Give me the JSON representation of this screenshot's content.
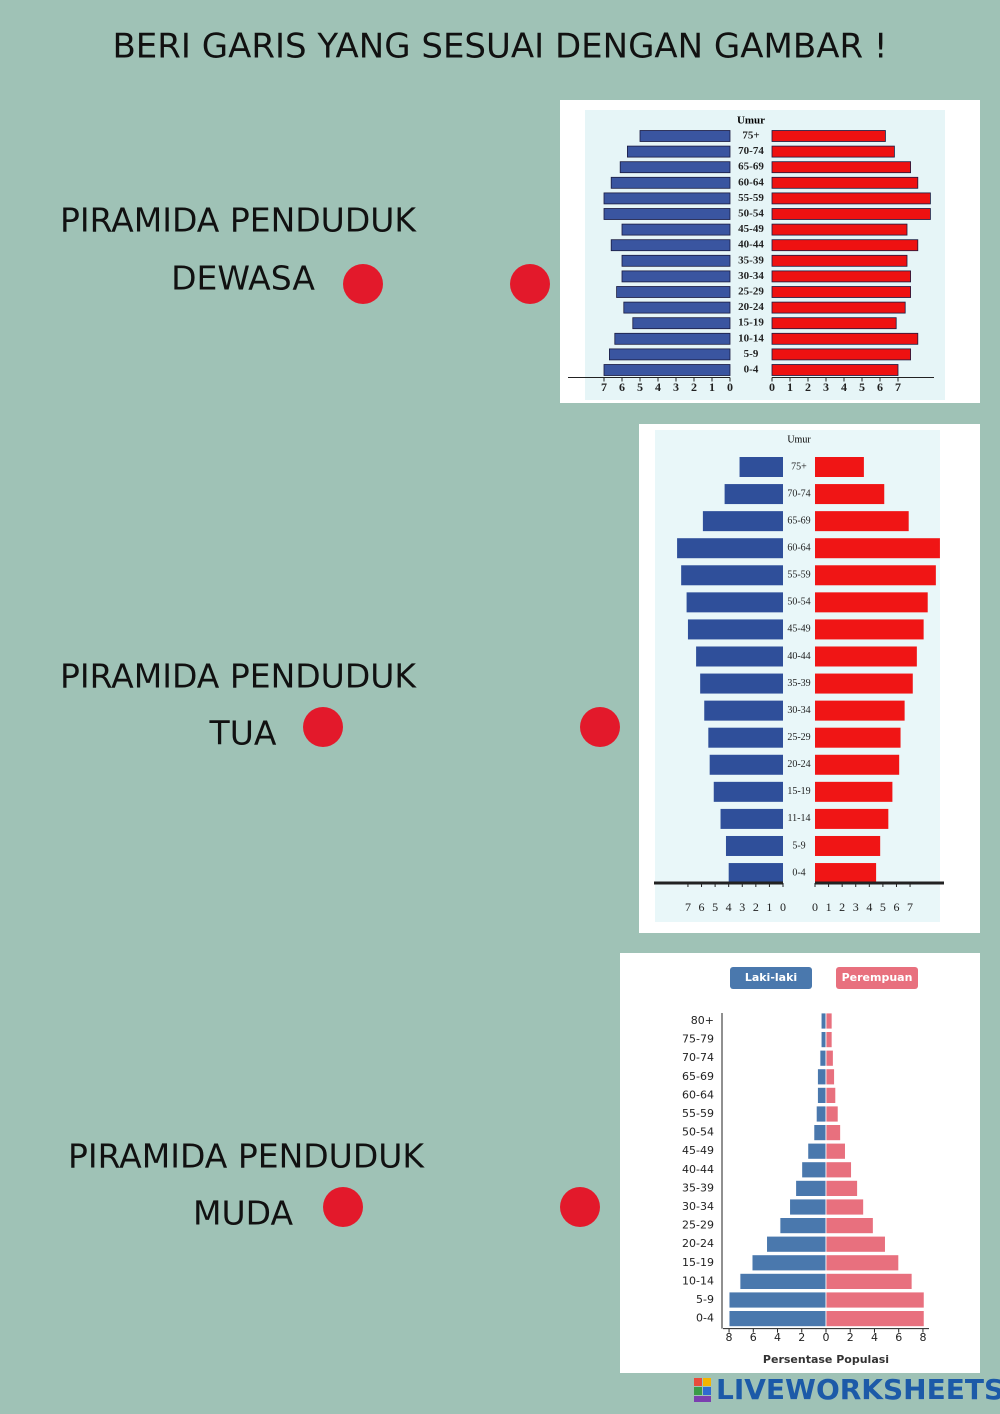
{
  "title": "BERI GARIS YANG SESUAI DENGAN GAMBAR !",
  "labels": [
    [
      "PIRAMIDA PENDUDUK",
      "DEWASA"
    ],
    [
      "PIRAMIDA PENDUDUK",
      "TUA"
    ],
    [
      "PIRAMIDA PENDUDUK",
      "MUDA"
    ]
  ],
  "chart_data": [
    {
      "type": "population_pyramid",
      "y_title": "Umur",
      "categories": [
        "75+",
        "70-74",
        "65-69",
        "60-64",
        "55-59",
        "50-54",
        "45-49",
        "40-44",
        "35-39",
        "30-34",
        "25-29",
        "20-24",
        "15-19",
        "10-14",
        "5-9",
        "0-4"
      ],
      "series": [
        {
          "color": "#3a55a0",
          "values": [
            5.0,
            5.7,
            6.1,
            6.6,
            7.0,
            7.0,
            6.0,
            6.6,
            6.0,
            6.0,
            6.3,
            5.9,
            5.4,
            6.4,
            6.7,
            7.0
          ]
        },
        {
          "color": "#ee1111",
          "values": [
            6.3,
            6.8,
            7.7,
            8.1,
            8.8,
            8.8,
            7.5,
            8.1,
            7.5,
            7.7,
            7.7,
            7.4,
            6.9,
            8.1,
            7.7,
            7.0
          ]
        }
      ],
      "xlim": [
        0,
        9
      ],
      "xticks": [
        0,
        1,
        2,
        3,
        4,
        5,
        6,
        7
      ]
    },
    {
      "type": "population_pyramid",
      "y_title": "Umur",
      "categories": [
        "75+",
        "70-74",
        "65-69",
        "60-64",
        "55-59",
        "50-54",
        "45-49",
        "40-44",
        "35-39",
        "30-34",
        "25-29",
        "20-24",
        "15-19",
        "11-14",
        "5-9",
        "0-4"
      ],
      "series": [
        {
          "color": "#2f4f9a",
          "values": [
            3.2,
            4.3,
            5.9,
            7.8,
            7.5,
            7.1,
            7.0,
            6.4,
            6.1,
            5.8,
            5.5,
            5.4,
            5.1,
            4.6,
            4.2,
            4.0
          ]
        },
        {
          "color": "#f01515",
          "values": [
            3.6,
            5.1,
            6.9,
            9.2,
            8.9,
            8.3,
            8.0,
            7.5,
            7.2,
            6.6,
            6.3,
            6.2,
            5.7,
            5.4,
            4.8,
            4.5
          ]
        }
      ],
      "xlim": [
        0,
        9.5
      ],
      "xticks": [
        0,
        1,
        2,
        3,
        4,
        5,
        6,
        7
      ]
    },
    {
      "type": "population_pyramid",
      "x_label": "Persentase Populasi",
      "categories": [
        "80+",
        "75-79",
        "70-74",
        "65-69",
        "60-64",
        "55-59",
        "50-54",
        "45-49",
        "40-44",
        "35-39",
        "30-34",
        "25-29",
        "20-24",
        "15-19",
        "10-14",
        "5-9",
        "0-4"
      ],
      "series": [
        {
          "name": "Laki-laki",
          "color": "#4a78ad",
          "values": [
            0.4,
            0.4,
            0.5,
            0.7,
            0.7,
            0.8,
            1.0,
            1.5,
            2.0,
            2.5,
            3.0,
            3.8,
            4.9,
            6.1,
            7.1,
            8.0,
            8.0
          ]
        },
        {
          "name": "Perempuan",
          "color": "#e8707e",
          "values": [
            0.5,
            0.5,
            0.6,
            0.7,
            0.8,
            1.0,
            1.2,
            1.6,
            2.1,
            2.6,
            3.1,
            3.9,
            4.9,
            6.0,
            7.1,
            8.1,
            8.1
          ]
        }
      ],
      "xlim": [
        0,
        8.5
      ],
      "xticks": [
        0,
        2,
        4,
        6,
        8
      ]
    }
  ],
  "footer": "LIVEWORKSHEETS"
}
